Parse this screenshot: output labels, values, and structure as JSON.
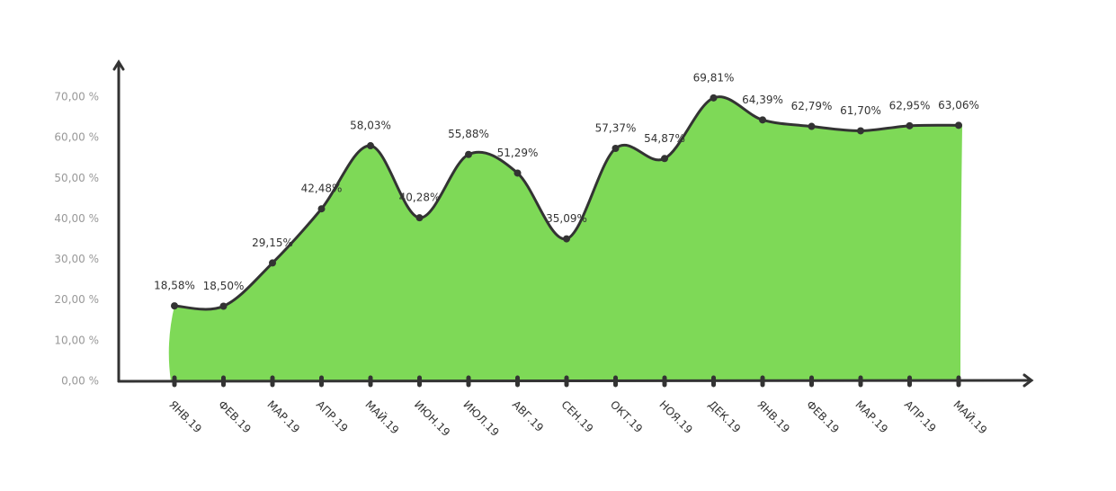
{
  "chart_data": {
    "type": "area",
    "categories": [
      "ЯНВ.19",
      "ФЕВ.19",
      "МАР.19",
      "АПР.19",
      "МАЙ.19",
      "ИЮН.19",
      "ИЮЛ.19",
      "АВГ.19",
      "СЕН.19",
      "ОКТ.19",
      "НОЯ.19",
      "ДЕК.19",
      "ЯНВ.19",
      "ФЕВ.19",
      "МАР.19",
      "АПР.19",
      "МАЙ.19"
    ],
    "values": [
      18.58,
      18.5,
      29.15,
      42.48,
      58.03,
      40.28,
      55.88,
      51.29,
      35.09,
      57.37,
      54.87,
      69.81,
      64.39,
      62.79,
      61.7,
      62.95,
      63.06
    ],
    "value_labels": [
      "18,58%",
      "18,50%",
      "29,15%",
      "42,48%",
      "58,03%",
      "40,28%",
      "55,88%",
      "51,29%",
      "35,09%",
      "57,37%",
      "54,87%",
      "69,81%",
      "64,39%",
      "62,79%",
      "61,70%",
      "62,95%",
      "63,06%"
    ],
    "color": "#7ed957",
    "line_color": "#333333",
    "ylim": [
      0,
      78
    ],
    "yticks": [
      {
        "value": 0,
        "label": "0,00 %"
      },
      {
        "value": 10,
        "label": "10,00 %"
      },
      {
        "value": 20,
        "label": "20,00 %"
      },
      {
        "value": 30,
        "label": "30,00 %"
      },
      {
        "value": 40,
        "label": "40,00 %"
      },
      {
        "value": 50,
        "label": "50,00 %"
      },
      {
        "value": 60,
        "label": "60,00 %"
      },
      {
        "value": 70,
        "label": "70,00 %"
      }
    ],
    "grid": false
  }
}
